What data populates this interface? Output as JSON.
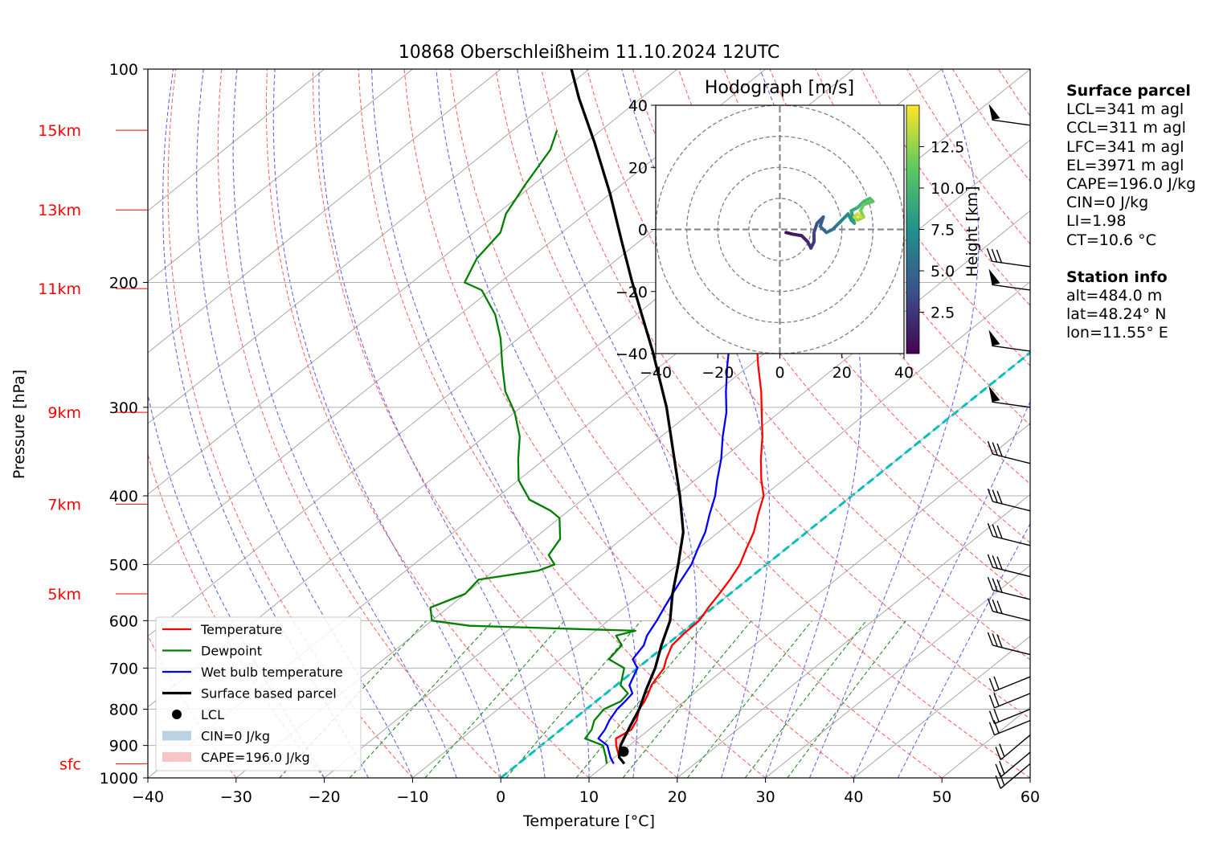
{
  "title": "10868 Oberschleißheim 11.10.2024 12UTC",
  "axes": {
    "xlabel": "Temperature [°C]",
    "ylabel": "Pressure [hPa]",
    "x_ticks": [
      "−40",
      "−30",
      "−20",
      "−10",
      "0",
      "10",
      "20",
      "30",
      "40",
      "50",
      "60"
    ],
    "y_ticks": [
      {
        "p": 100,
        "label": "100"
      },
      {
        "p": 200,
        "label": "200"
      },
      {
        "p": 300,
        "label": "300"
      },
      {
        "p": 400,
        "label": "400"
      },
      {
        "p": 500,
        "label": "500"
      },
      {
        "p": 600,
        "label": "600"
      },
      {
        "p": 700,
        "label": "700"
      },
      {
        "p": 800,
        "label": "800"
      },
      {
        "p": 900,
        "label": "900"
      },
      {
        "p": 1000,
        "label": "1000"
      }
    ],
    "height_labels": [
      {
        "label": "15km",
        "p": 122
      },
      {
        "label": "13km",
        "p": 158
      },
      {
        "label": "11km",
        "p": 204
      },
      {
        "label": "9km",
        "p": 305
      },
      {
        "label": "7km",
        "p": 411
      },
      {
        "label": "5km",
        "p": 550
      },
      {
        "label": "sfc",
        "p": 955
      }
    ]
  },
  "legend": {
    "items": [
      {
        "label": "Temperature",
        "color": "#ff0000",
        "kind": "line"
      },
      {
        "label": "Dewpoint",
        "color": "#008000",
        "kind": "line"
      },
      {
        "label": "Wet bulb temperature",
        "color": "#0000ff",
        "kind": "line"
      },
      {
        "label": "Surface based parcel",
        "color": "#000000",
        "kind": "thickline"
      },
      {
        "label": "LCL",
        "color": "#000000",
        "kind": "dot"
      },
      {
        "label": "CIN=0 J/kg",
        "color": "#bcd3e6",
        "kind": "patch"
      },
      {
        "label": "CAPE=196.0 J/kg",
        "color": "#f7c5c5",
        "kind": "patch"
      }
    ]
  },
  "hodograph": {
    "title": "Hodograph [m/s]",
    "ticks": [
      "−40",
      "−20",
      "0",
      "20",
      "40"
    ],
    "colorbar_label": "Height [km]",
    "colorbar_ticks": [
      "2.5",
      "5.0",
      "7.5",
      "10.0",
      "12.5"
    ]
  },
  "info": {
    "surface_heading": "Surface parcel",
    "surface_lines": [
      "LCL=341 m agl",
      "CCL=311 m agl",
      "LFC=341 m agl",
      "EL=3971 m agl",
      "CAPE=196.0 J/kg",
      "CIN=0 J/kg",
      "LI=1.98",
      "CT=10.6 °C"
    ],
    "station_heading": "Station info",
    "station_lines": [
      "alt=484.0 m",
      "lat=48.24° N",
      "lon=11.55° E"
    ]
  },
  "colors": {
    "temperature": "#ff0000",
    "dewpoint": "#008000",
    "wetbulb": "#0000ff",
    "parcel": "#000000",
    "dry_adiabat": "#ff6666",
    "moist_adiabat": "#6666ee",
    "mixing_ratio": "#228b22",
    "isotherm": "#a9a9a9",
    "freezing_level": "#00bfbf"
  },
  "chart_data": [
    {
      "type": "line",
      "title": "10868 Oberschleißheim 11.10.2024 12UTC",
      "xlabel": "Temperature [°C]",
      "ylabel": "Pressure [hPa]",
      "xlim": [
        -40,
        60
      ],
      "ylim": [
        1000,
        100
      ],
      "y_scale": "log",
      "skew": true,
      "series": [
        {
          "name": "Temperature",
          "points": [
            [
              12.0,
              955
            ],
            [
              10.5,
              935
            ],
            [
              8.5,
              900
            ],
            [
              7.5,
              880
            ],
            [
              8.0,
              855
            ],
            [
              7.3,
              830
            ],
            [
              6.0,
              800
            ],
            [
              5.5,
              780
            ],
            [
              4.8,
              760
            ],
            [
              4.0,
              740
            ],
            [
              3.0,
              700
            ],
            [
              2.0,
              680
            ],
            [
              0.7,
              650
            ],
            [
              0.4,
              625
            ],
            [
              0.3,
              600
            ],
            [
              -0.5,
              575
            ],
            [
              -1.2,
              550
            ],
            [
              -2.0,
              525
            ],
            [
              -3.0,
              500
            ],
            [
              -4.5,
              475
            ],
            [
              -6.0,
              450
            ],
            [
              -8.0,
              425
            ],
            [
              -10.0,
              400
            ],
            [
              -12.5,
              380
            ],
            [
              -15.5,
              355
            ],
            [
              -18.5,
              330
            ],
            [
              -22.0,
              305
            ],
            [
              -25.0,
              285
            ],
            [
              -29.0,
              262
            ],
            [
              -33.0,
              240
            ],
            [
              -37.0,
              222
            ],
            [
              -41.0,
              210
            ],
            [
              -42.0,
              205
            ],
            [
              -44.0,
              200
            ],
            [
              -44.5,
              190
            ],
            [
              -46.0,
              175
            ],
            [
              -49.0,
              160
            ],
            [
              -52.0,
              145
            ],
            [
              -53.0,
              135
            ],
            [
              -55.0,
              127
            ],
            [
              -57.0,
              122
            ],
            [
              -58.0,
              120
            ]
          ]
        },
        {
          "name": "Dewpoint",
          "points": [
            [
              10.0,
              955
            ],
            [
              9.0,
              935
            ],
            [
              7.0,
              900
            ],
            [
              4.0,
              880
            ],
            [
              3.5,
              855
            ],
            [
              2.5,
              830
            ],
            [
              2.0,
              800
            ],
            [
              2.8,
              780
            ],
            [
              2.5,
              760
            ],
            [
              0.5,
              740
            ],
            [
              -1.5,
              700
            ],
            [
              -4.5,
              680
            ],
            [
              -5.0,
              650
            ],
            [
              -7.0,
              630
            ],
            [
              -5.5,
              620
            ],
            [
              -25.0,
              610
            ],
            [
              -30.0,
              600
            ],
            [
              -32.0,
              575
            ],
            [
              -30.0,
              550
            ],
            [
              -30.5,
              525
            ],
            [
              -25.0,
              510
            ],
            [
              -24.0,
              500
            ],
            [
              -26.0,
              485
            ],
            [
              -27.0,
              460
            ],
            [
              -30.0,
              430
            ],
            [
              -32.0,
              420
            ],
            [
              -36.0,
              405
            ],
            [
              -40.0,
              380
            ],
            [
              -43.0,
              355
            ],
            [
              -46.0,
              330
            ],
            [
              -50.0,
              305
            ],
            [
              -54.0,
              285
            ],
            [
              -58.0,
              262
            ],
            [
              -62.0,
              240
            ],
            [
              -66.0,
              222
            ],
            [
              -71.0,
              205
            ],
            [
              -74.0,
              200
            ],
            [
              -76.0,
              185
            ],
            [
              -77.0,
              170
            ],
            [
              -79.0,
              160
            ],
            [
              -81.0,
              145
            ],
            [
              -83.0,
              130
            ],
            [
              -85.0,
              122
            ]
          ]
        },
        {
          "name": "Wet bulb temperature",
          "points": [
            [
              10.8,
              955
            ],
            [
              9.5,
              935
            ],
            [
              7.5,
              900
            ],
            [
              5.5,
              880
            ],
            [
              5.0,
              855
            ],
            [
              4.2,
              830
            ],
            [
              3.5,
              800
            ],
            [
              3.3,
              780
            ],
            [
              3.0,
              760
            ],
            [
              1.5,
              740
            ],
            [
              0.0,
              700
            ],
            [
              -1.8,
              680
            ],
            [
              -2.5,
              650
            ],
            [
              -3.5,
              630
            ],
            [
              -4.5,
              600
            ],
            [
              -5.5,
              575
            ],
            [
              -6.5,
              550
            ],
            [
              -7.5,
              525
            ],
            [
              -8.5,
              500
            ],
            [
              -10.0,
              475
            ],
            [
              -11.5,
              450
            ],
            [
              -13.5,
              425
            ],
            [
              -15.5,
              400
            ],
            [
              -17.5,
              380
            ],
            [
              -20.0,
              355
            ],
            [
              -23.0,
              330
            ],
            [
              -26.0,
              305
            ],
            [
              -29.0,
              285
            ],
            [
              -32.5,
              262
            ],
            [
              -36.0,
              240
            ],
            [
              -39.5,
              222
            ],
            [
              -42.5,
              210
            ],
            [
              -43.5,
              205
            ],
            [
              -45.0,
              200
            ],
            [
              -46.0,
              190
            ],
            [
              -47.5,
              175
            ],
            [
              -50.5,
              160
            ],
            [
              -53.5,
              145
            ],
            [
              -55.0,
              135
            ],
            [
              -56.5,
              127
            ],
            [
              -58.5,
              122
            ],
            [
              -59.5,
              120
            ]
          ]
        },
        {
          "name": "Surface based parcel",
          "points": [
            [
              12.0,
              955
            ],
            [
              10.5,
              935
            ],
            [
              9.0,
              900
            ],
            [
              7.5,
              850
            ],
            [
              6.0,
              800
            ],
            [
              4.0,
              750
            ],
            [
              2.0,
              700
            ],
            [
              -0.5,
              650
            ],
            [
              -3.0,
              600
            ],
            [
              -6.5,
              550
            ],
            [
              -10.0,
              500
            ],
            [
              -14.0,
              450
            ],
            [
              -19.5,
              400
            ],
            [
              -26.0,
              350
            ],
            [
              -33.5,
              300
            ],
            [
              -43.0,
              250
            ],
            [
              -55.0,
              200
            ],
            [
              -62.0,
              175
            ],
            [
              -70.0,
              150
            ],
            [
              -79.0,
              127
            ],
            [
              -87.0,
              110
            ],
            [
              -92.0,
              100
            ]
          ]
        }
      ],
      "annotations": {
        "lcl": {
          "t": 10.2,
          "p": 918
        },
        "cape": 196.0,
        "cin": 0
      }
    },
    {
      "type": "line",
      "title": "Hodograph [m/s]",
      "xlim": [
        -40,
        40
      ],
      "ylim": [
        -40,
        40
      ],
      "rings": [
        10,
        20,
        30,
        40
      ],
      "colorbar": {
        "label": "Height [km]",
        "range": [
          0,
          15
        ]
      },
      "points": [
        [
          2,
          -1,
          0.5
        ],
        [
          4,
          -1.5,
          1
        ],
        [
          7,
          -2,
          1.5
        ],
        [
          9,
          -4,
          2
        ],
        [
          10,
          -6,
          2.5
        ],
        [
          11,
          -4,
          3
        ],
        [
          11,
          -1,
          3.5
        ],
        [
          12,
          2,
          4
        ],
        [
          14,
          4,
          4.5
        ],
        [
          13,
          1,
          5
        ],
        [
          15,
          -1,
          5.5
        ],
        [
          17,
          0,
          6
        ],
        [
          19,
          2,
          6.5
        ],
        [
          20,
          3,
          7
        ],
        [
          22,
          5,
          7.5
        ],
        [
          23,
          3,
          8
        ],
        [
          24,
          2,
          8.5
        ],
        [
          23,
          6,
          9
        ],
        [
          25,
          7,
          9.5
        ],
        [
          27,
          9,
          10
        ],
        [
          29,
          10,
          10.5
        ],
        [
          30,
          9,
          11
        ],
        [
          27,
          8,
          11.5
        ],
        [
          26,
          6,
          12
        ],
        [
          27,
          4,
          12.5
        ],
        [
          25,
          3,
          13
        ],
        [
          24,
          4,
          13.5
        ],
        [
          25,
          5,
          14
        ],
        [
          26,
          4,
          14.5
        ]
      ]
    }
  ]
}
